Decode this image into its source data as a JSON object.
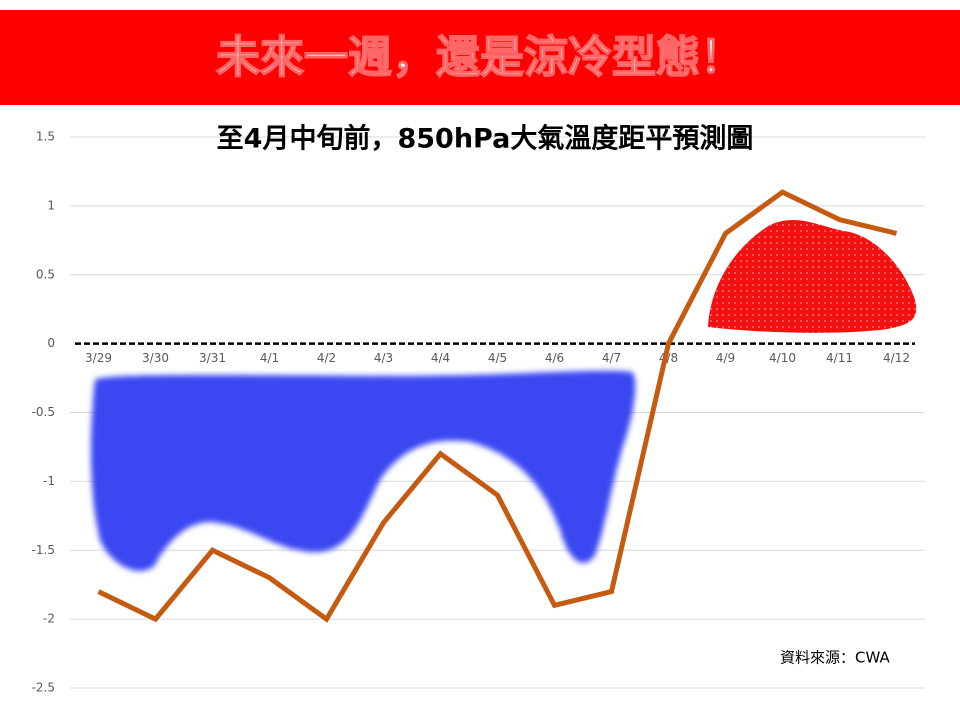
{
  "header": {
    "title": "未來一週，還是涼冷型態！"
  },
  "chart_data": {
    "type": "line",
    "title": "至4月中旬前，850hPa大氣溫度距平預測圖",
    "categories": [
      "3/29",
      "3/30",
      "3/31",
      "4/1",
      "4/2",
      "4/3",
      "4/4",
      "4/5",
      "4/6",
      "4/7",
      "4/8",
      "4/9",
      "4/10",
      "4/11",
      "4/12"
    ],
    "values": [
      -1.8,
      -2.0,
      -1.5,
      -1.7,
      -2.0,
      -1.3,
      -0.8,
      -1.1,
      -1.9,
      -1.8,
      0.0,
      0.8,
      1.1,
      0.9,
      0.8
    ],
    "color": "#c55a11",
    "ylim": [
      -2.5,
      1.5
    ],
    "yticks": [
      1.5,
      1,
      0.5,
      0,
      -0.5,
      -1,
      -1.5,
      -2,
      -2.5
    ],
    "grid": true,
    "source": "資料來源：CWA"
  }
}
